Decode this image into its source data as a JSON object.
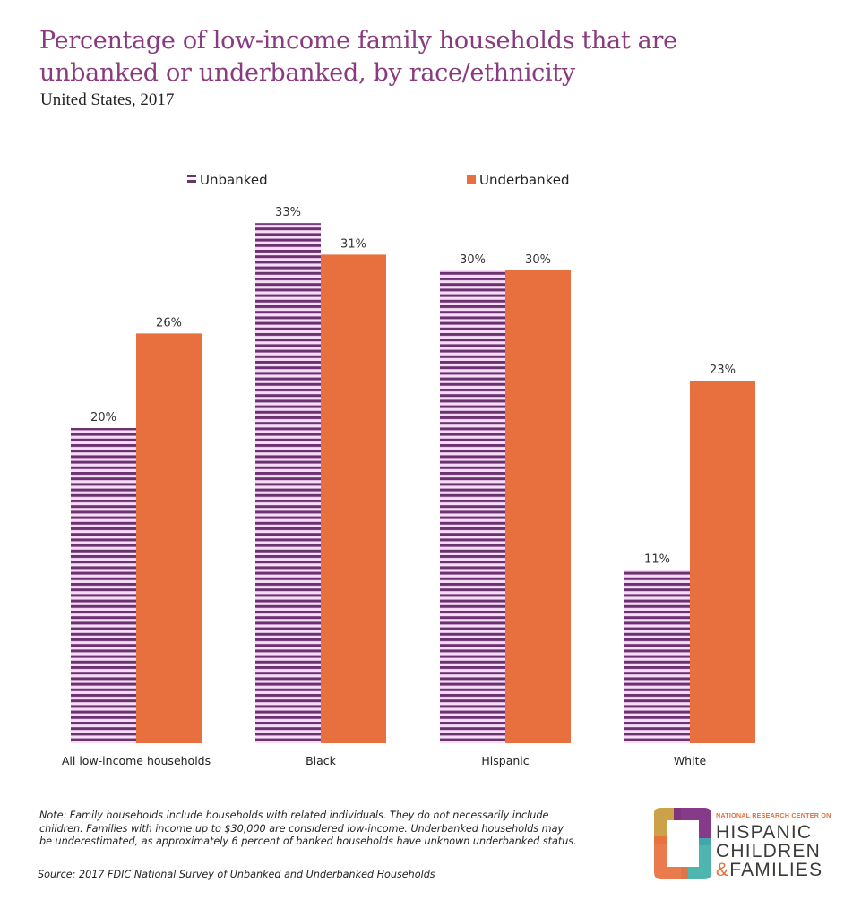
{
  "title": "Percentage of low-income family households that are unbanked or underbanked, by race/ethnicity",
  "subtitle": "United States, 2017",
  "colors": {
    "title": "#8a3a7e",
    "unbanked_stripe": "#6b3270",
    "unbanked_bg": "#f6dcf6",
    "underbanked": "#e8703e"
  },
  "chart_data": {
    "type": "bar",
    "title": "Percentage of low-income family households that are unbanked or underbanked, by race/ethnicity",
    "subtitle": "United States, 2017",
    "xlabel": "",
    "ylabel": "",
    "ylim": [
      0,
      35
    ],
    "grid": false,
    "legend_position": "top",
    "categories": [
      "All low-income households",
      "Black",
      "Hispanic",
      "White"
    ],
    "series": [
      {
        "name": "Unbanked",
        "values": [
          20,
          33,
          30,
          11
        ],
        "labels": [
          "20%",
          "33%",
          "30%",
          "11%"
        ],
        "pattern": "horizontal-stripes"
      },
      {
        "name": "Underbanked",
        "values": [
          26,
          31,
          30,
          23
        ],
        "labels": [
          "26%",
          "31%",
          "30%",
          "23%"
        ],
        "pattern": "solid"
      }
    ]
  },
  "note": "Note: Family households include households with related individuals. They do not necessarily include children. Families with income up to $30,000 are considered low-income. Underbanked households may be underestimated, as approximately 6 percent of banked households have unknown underbanked status.",
  "source": "Source:  2017 FDIC National Survey of Unbanked and Underbanked Households",
  "logo": {
    "top_line": "NATIONAL RESEARCH CENTER ON",
    "line1": "HISPANIC",
    "line2": "CHILDREN",
    "amp": "&",
    "line3": "FAMILIES"
  }
}
